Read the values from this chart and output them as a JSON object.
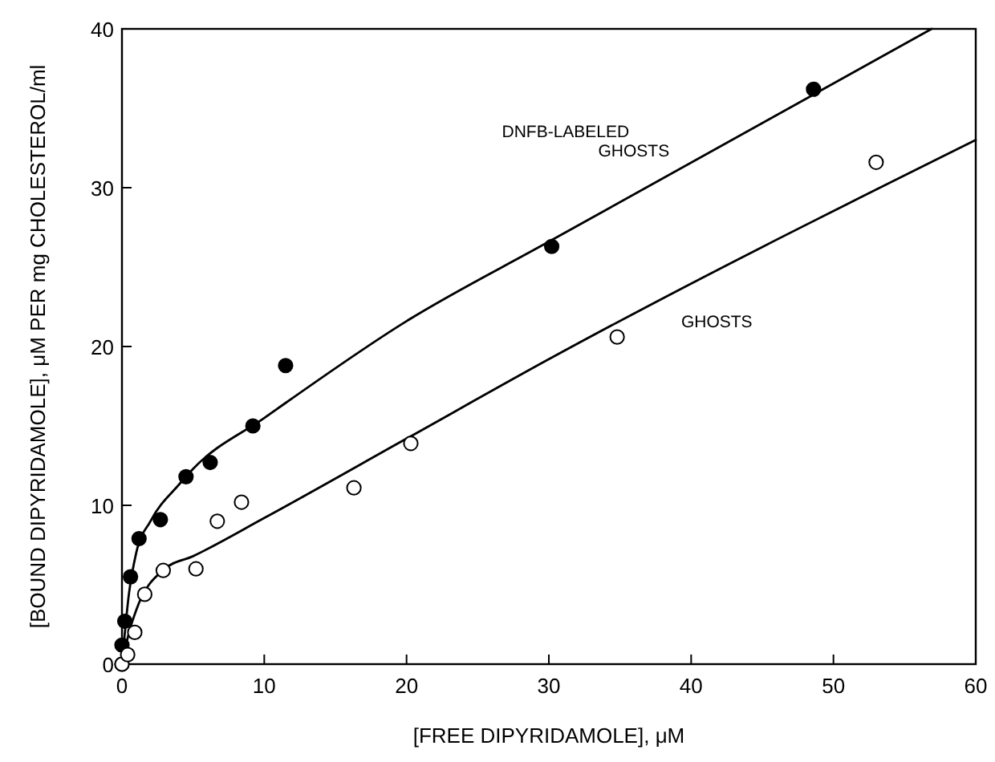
{
  "chart_data": {
    "type": "scatter",
    "xlabel": "[FREE DIPYRIDAMOLE], μM",
    "ylabel": "[BOUND DIPYRIDAMOLE], μM PER mg CHOLESTEROL/ml",
    "xlim": [
      0,
      60
    ],
    "ylim": [
      0,
      40
    ],
    "xticks": [
      0,
      10,
      20,
      30,
      40,
      50,
      60
    ],
    "yticks": [
      0,
      10,
      20,
      30,
      40
    ],
    "grid": false,
    "series": [
      {
        "marker": "circle",
        "color": "#000000",
        "x": [
          0,
          0,
          0.2,
          0.6,
          1.2,
          2.7,
          4.5,
          6.2,
          9.2,
          11.5,
          30.2,
          48.6
        ],
        "values": [
          0,
          1.2,
          2.7,
          5.5,
          7.9,
          9.1,
          11.8,
          12.7,
          15.0,
          18.8,
          26.3,
          36.2
        ]
      },
      {
        "marker": "circle",
        "color": "#ffffff",
        "x": [
          0,
          0.4,
          0.9,
          1.6,
          2.9,
          5.2,
          6.7,
          8.4,
          16.3,
          20.3,
          34.8,
          53.0
        ],
        "values": [
          0,
          0.6,
          2.0,
          4.4,
          5.9,
          6.0,
          9.0,
          10.2,
          11.1,
          13.9,
          20.6,
          31.6
        ]
      },
      {
        "type": "line",
        "name": "DNFB-LABELED GHOSTS",
        "color": "#000000",
        "x": [
          0,
          0.5,
          1,
          2,
          4,
          5,
          10,
          20,
          30,
          56.9
        ],
        "values": [
          0,
          4.5,
          7,
          9,
          11.3,
          12.3,
          15.5,
          21.6,
          26.6,
          40
        ]
      },
      {
        "type": "line",
        "name": "GHOSTS",
        "color": "#000000",
        "x": [
          0,
          0.5,
          1,
          3,
          5,
          10,
          20,
          30,
          60
        ],
        "values": [
          0,
          2,
          3.4,
          6.0,
          6.8,
          9.2,
          14.2,
          19.2,
          33
        ]
      }
    ]
  }
}
